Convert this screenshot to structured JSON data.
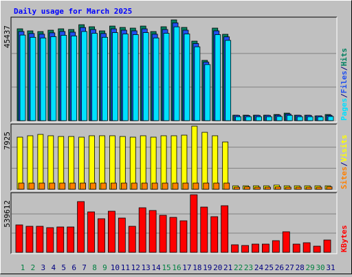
{
  "chart_data": [
    {
      "type": "bar",
      "title": "Daily usage for March 2025",
      "categories": [
        "1",
        "2",
        "3",
        "4",
        "5",
        "6",
        "7",
        "8",
        "9",
        "10",
        "11",
        "12",
        "13",
        "14",
        "15",
        "16",
        "17",
        "18",
        "19",
        "20",
        "21",
        "22",
        "23",
        "24",
        "25",
        "26",
        "27",
        "28",
        "29",
        "30",
        "31"
      ],
      "category_colors": [
        "#008040",
        "#008040",
        "#000080",
        "#000080",
        "#000080",
        "#000080",
        "#000080",
        "#008040",
        "#008040",
        "#000080",
        "#000080",
        "#000080",
        "#000080",
        "#000080",
        "#008040",
        "#008040",
        "#000080",
        "#000080",
        "#000080",
        "#000080",
        "#000080",
        "#008040",
        "#008040",
        "#000080",
        "#000080",
        "#000080",
        "#000080",
        "#000080",
        "#008040",
        "#008040",
        "#000080"
      ],
      "legend_separator": "/",
      "ylim": [
        0,
        45437
      ],
      "yticks": [
        45437
      ],
      "series": [
        {
          "name": "Pages",
          "color": "#00e0ff",
          "values": [
            38600,
            37600,
            37300,
            37900,
            38500,
            38200,
            40200,
            39400,
            37600,
            39700,
            39100,
            38800,
            39700,
            37300,
            39400,
            42300,
            39100,
            33300,
            25300,
            38800,
            36200,
            1800,
            1800,
            1800,
            1800,
            1900,
            2400,
            1800,
            1800,
            1700,
            1900
          ]
        },
        {
          "name": "Files",
          "color": "#2050f0",
          "values": [
            40200,
            39300,
            39000,
            39600,
            40200,
            39900,
            42000,
            41100,
            39300,
            41400,
            40800,
            40500,
            41400,
            39000,
            41100,
            44100,
            40800,
            34800,
            26400,
            40500,
            37800,
            2400,
            2300,
            2400,
            2400,
            2500,
            3000,
            2400,
            2400,
            2200,
            2400
          ]
        },
        {
          "name": "Hits",
          "color": "#008060",
          "values": [
            41420,
            40490,
            40180,
            40800,
            41420,
            41110,
            43270,
            42350,
            40490,
            42650,
            42040,
            41730,
            42650,
            40180,
            42350,
            45437,
            42040,
            35860,
            27200,
            41730,
            38950,
            2470,
            2470,
            2470,
            2470,
            2780,
            3400,
            2470,
            2470,
            2160,
            2780
          ]
        }
      ]
    },
    {
      "type": "bar",
      "ylim": [
        0,
        7925
      ],
      "yticks": [
        7925
      ],
      "series": [
        {
          "name": "Sites",
          "color": "#ff8000",
          "values": [
            775,
            775,
            775,
            775,
            775,
            775,
            775,
            775,
            775,
            775,
            775,
            775,
            775,
            775,
            775,
            775,
            775,
            775,
            775,
            775,
            775,
            260,
            300,
            260,
            260,
            300,
            260,
            260,
            260,
            260,
            300
          ]
        },
        {
          "name": "Visits",
          "color": "#ffff00",
          "values": [
            6545,
            6720,
            6890,
            6720,
            6630,
            6630,
            6545,
            6720,
            6720,
            6720,
            6630,
            6545,
            6720,
            6545,
            6720,
            6720,
            6800,
            7925,
            7150,
            6720,
            5940,
            430,
            430,
            430,
            430,
            520,
            430,
            430,
            430,
            430,
            430
          ]
        }
      ]
    },
    {
      "type": "bar",
      "ylim": [
        0,
        539612
      ],
      "yticks": [
        539612
      ],
      "series": [
        {
          "name": "KBytes",
          "color": "#ff0000",
          "values": [
            256960,
            244100,
            244100,
            231300,
            237700,
            237700,
            475400,
            379000,
            314800,
            385400,
            321200,
            244100,
            417600,
            391900,
            346900,
            327600,
            295500,
            539612,
            424000,
            334000,
            436800,
            70700,
            64200,
            77100,
            77100,
            109200,
            192700,
            77100,
            89900,
            57800,
            115600
          ]
        }
      ]
    }
  ]
}
